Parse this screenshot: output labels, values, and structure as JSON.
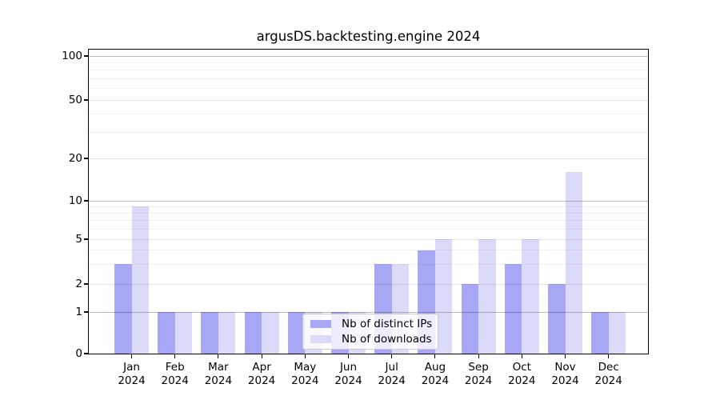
{
  "chart_data": {
    "type": "bar",
    "title": "argusDS.backtesting.engine 2024",
    "categories": [
      "Jan",
      "Feb",
      "Mar",
      "Apr",
      "May",
      "Jun",
      "Jul",
      "Aug",
      "Sep",
      "Oct",
      "Nov",
      "Dec"
    ],
    "year": "2024",
    "series": [
      {
        "name": "Nb of distinct IPs",
        "color": "#a8a7f5",
        "values": [
          3,
          1,
          1,
          1,
          1,
          1,
          3,
          4,
          2,
          3,
          2,
          1
        ]
      },
      {
        "name": "Nb of downloads",
        "color": "#dbdaf9",
        "values": [
          9,
          1,
          1,
          1,
          1,
          1,
          3,
          5,
          5,
          5,
          16,
          1
        ]
      }
    ],
    "ylim": [
      0,
      110
    ],
    "xlabel": "",
    "ylabel": "",
    "scale": "log-like above 1, linear between 0 and 1",
    "grid": true,
    "yticks": [
      100,
      50,
      20,
      10,
      5,
      2,
      1,
      0
    ],
    "yticklabels": [
      "100",
      "50",
      "20",
      "10",
      "5",
      "2",
      "1",
      "0"
    ],
    "grid_major_values": [
      1,
      10,
      100
    ],
    "grid_labeled_minor_values": [
      2,
      5,
      20,
      50
    ],
    "grid_minor_values": [
      3,
      4,
      6,
      7,
      8,
      9,
      30,
      40,
      60,
      70,
      80,
      90
    ],
    "legend": {
      "labels": [
        "Nb of distinct IPs",
        "Nb of downloads"
      ],
      "position": "lower-center-inside"
    }
  },
  "colors": {
    "background": "#ffffff",
    "axis": "#000000",
    "distinct_ips_bar": "#a8a7f5",
    "downloads_bar": "#dbdaf9"
  }
}
